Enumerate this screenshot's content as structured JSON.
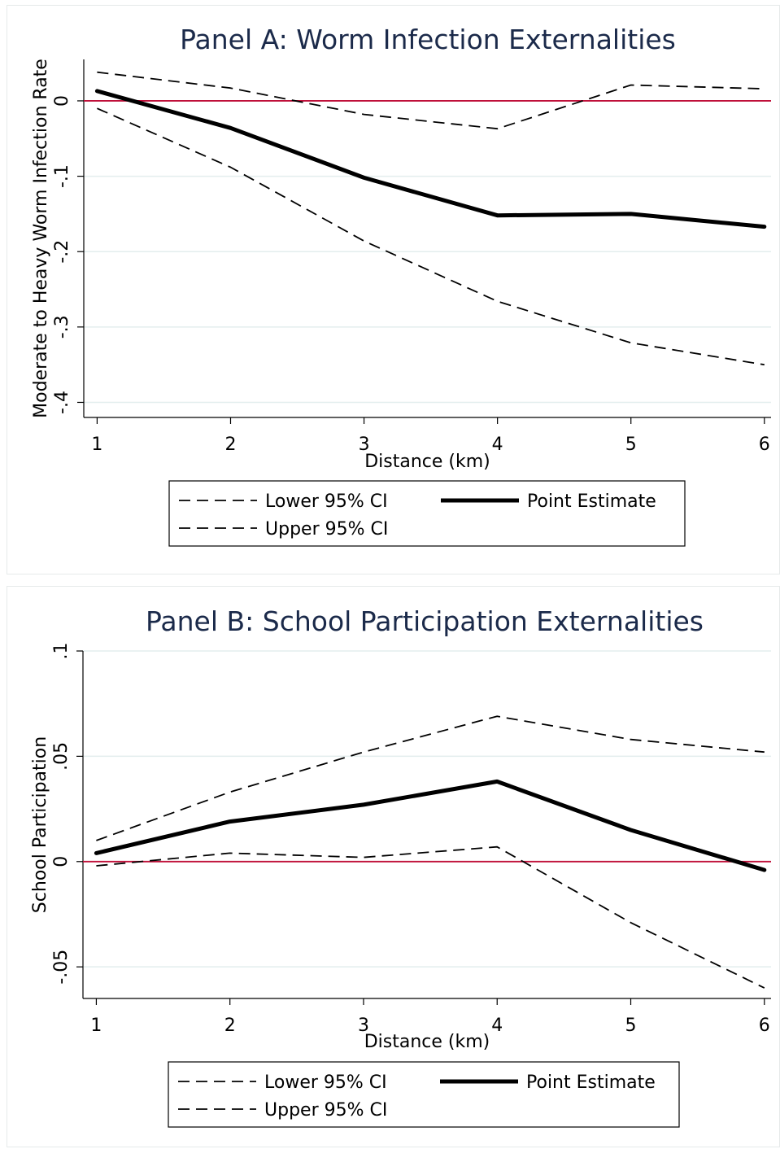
{
  "chart_data": [
    {
      "type": "line",
      "title": "Panel A: Worm Infection Externalities",
      "xlabel": "Distance (km)",
      "ylabel": "Moderate to Heavy Worm Infection Rate",
      "x": [
        1,
        2,
        3,
        4,
        5,
        6
      ],
      "xlim": [
        0.9,
        6.05
      ],
      "ylim": [
        -0.42,
        0.055
      ],
      "xticks": [
        1,
        2,
        3,
        4,
        5,
        6
      ],
      "xtick_labels": [
        "1",
        "2",
        "3",
        "4",
        "5",
        "6"
      ],
      "yticks": [
        0,
        -0.1,
        -0.2,
        -0.3,
        -0.4
      ],
      "ytick_labels": [
        "0",
        "-.1",
        "-.2",
        "-.3",
        "-.4"
      ],
      "reference_line": 0,
      "grid": true,
      "legend_position": "bottom",
      "series": [
        {
          "name": "Lower 95% CI",
          "style": "dashed",
          "values": [
            -0.01,
            -0.088,
            -0.186,
            -0.266,
            -0.321,
            -0.35
          ]
        },
        {
          "name": "Upper 95% CI",
          "style": "dashed",
          "values": [
            0.038,
            0.017,
            -0.018,
            -0.037,
            0.021,
            0.016
          ]
        },
        {
          "name": "Point Estimate",
          "style": "solid",
          "values": [
            0.013,
            -0.036,
            -0.102,
            -0.152,
            -0.15,
            -0.167
          ]
        }
      ]
    },
    {
      "type": "line",
      "title": "Panel B: School Participation Externalities",
      "xlabel": "Distance (km)",
      "ylabel": "School Participation",
      "x": [
        1,
        2,
        3,
        4,
        5,
        6
      ],
      "xlim": [
        0.9,
        6.05
      ],
      "ylim": [
        -0.065,
        0.1
      ],
      "xticks": [
        1,
        2,
        3,
        4,
        5,
        6
      ],
      "xtick_labels": [
        "1",
        "2",
        "3",
        "4",
        "5",
        "6"
      ],
      "yticks": [
        0.1,
        0.05,
        0,
        -0.05
      ],
      "ytick_labels": [
        ".1",
        ".05",
        "0",
        "-.05"
      ],
      "reference_line": 0,
      "grid": true,
      "legend_position": "bottom",
      "series": [
        {
          "name": "Lower 95% CI",
          "style": "dashed",
          "values": [
            -0.002,
            0.004,
            0.002,
            0.007,
            -0.029,
            -0.06
          ]
        },
        {
          "name": "Upper 95% CI",
          "style": "dashed",
          "values": [
            0.01,
            0.033,
            0.052,
            0.069,
            0.058,
            0.052
          ]
        },
        {
          "name": "Point Estimate",
          "style": "solid",
          "values": [
            0.004,
            0.019,
            0.027,
            0.038,
            0.015,
            -0.004
          ]
        }
      ]
    }
  ],
  "colors": {
    "title": "#1b2a4a",
    "reference_line": "#c0103a",
    "grid": "#e3eeee",
    "lines": "#000000"
  }
}
